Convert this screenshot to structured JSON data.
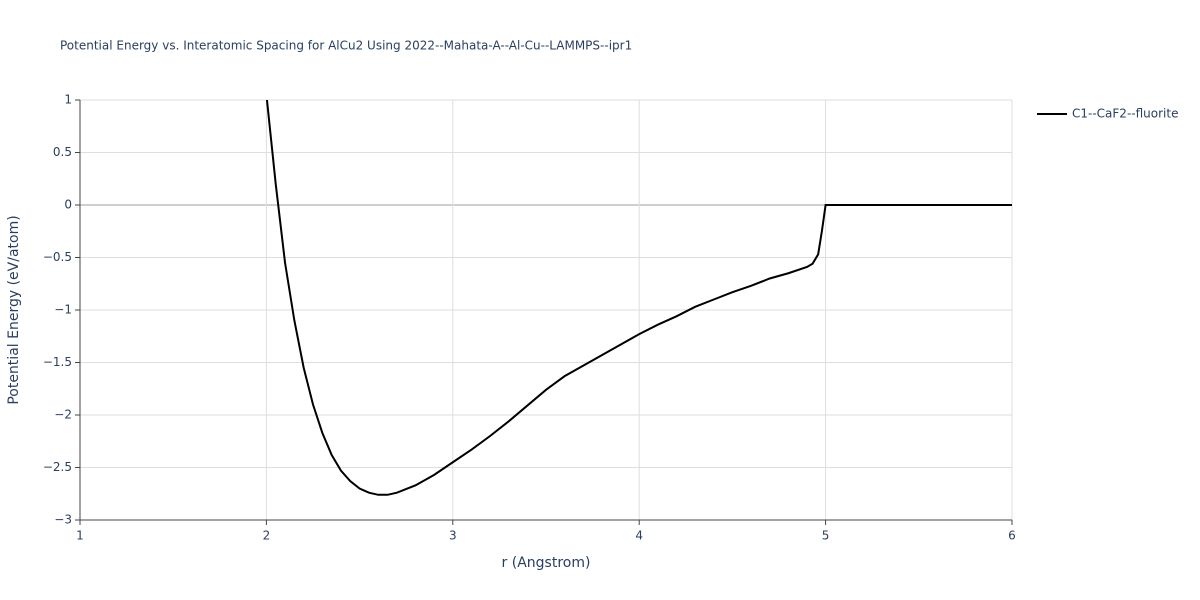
{
  "chart_data": {
    "type": "line",
    "title": "Potential Energy vs. Interatomic Spacing for AlCu2 Using 2022--Mahata-A--Al-Cu--LAMMPS--ipr1",
    "xlabel": "r (Angstrom)",
    "ylabel": "Potential Energy (eV/atom)",
    "xlim": [
      1,
      6
    ],
    "ylim": [
      -3,
      1
    ],
    "xticks": [
      1,
      2,
      3,
      4,
      5,
      6
    ],
    "yticks": [
      {
        "value": -3,
        "label": "−3"
      },
      {
        "value": -2.5,
        "label": "−2.5"
      },
      {
        "value": -2,
        "label": "−2"
      },
      {
        "value": -1.5,
        "label": "−1.5"
      },
      {
        "value": -1,
        "label": "−1"
      },
      {
        "value": -0.5,
        "label": "−0.5"
      },
      0,
      0.5,
      1
    ],
    "grid": true,
    "x": [
      2.003,
      2.05,
      2.1,
      2.15,
      2.2,
      2.25,
      2.3,
      2.35,
      2.4,
      2.45,
      2.5,
      2.55,
      2.6,
      2.65,
      2.7,
      2.8,
      2.9,
      3.0,
      3.1,
      3.2,
      3.3,
      3.4,
      3.5,
      3.6,
      3.7,
      3.8,
      3.9,
      4.0,
      4.1,
      4.2,
      4.3,
      4.4,
      4.5,
      4.6,
      4.7,
      4.8,
      4.9,
      4.93,
      4.96,
      4.98,
      5.0,
      5.5,
      6.0
    ],
    "series": [
      {
        "name": "C1--CaF2--fluorite",
        "color": "#000000",
        "values": [
          1.0,
          0.2,
          -0.55,
          -1.1,
          -1.55,
          -1.9,
          -2.17,
          -2.38,
          -2.53,
          -2.63,
          -2.7,
          -2.74,
          -2.76,
          -2.76,
          -2.74,
          -2.67,
          -2.57,
          -2.45,
          -2.33,
          -2.2,
          -2.06,
          -1.91,
          -1.76,
          -1.63,
          -1.53,
          -1.43,
          -1.33,
          -1.23,
          -1.14,
          -1.06,
          -0.97,
          -0.9,
          -0.83,
          -0.77,
          -0.7,
          -0.65,
          -0.59,
          -0.56,
          -0.47,
          -0.25,
          0,
          0,
          0
        ]
      }
    ],
    "legend": "top-right"
  }
}
